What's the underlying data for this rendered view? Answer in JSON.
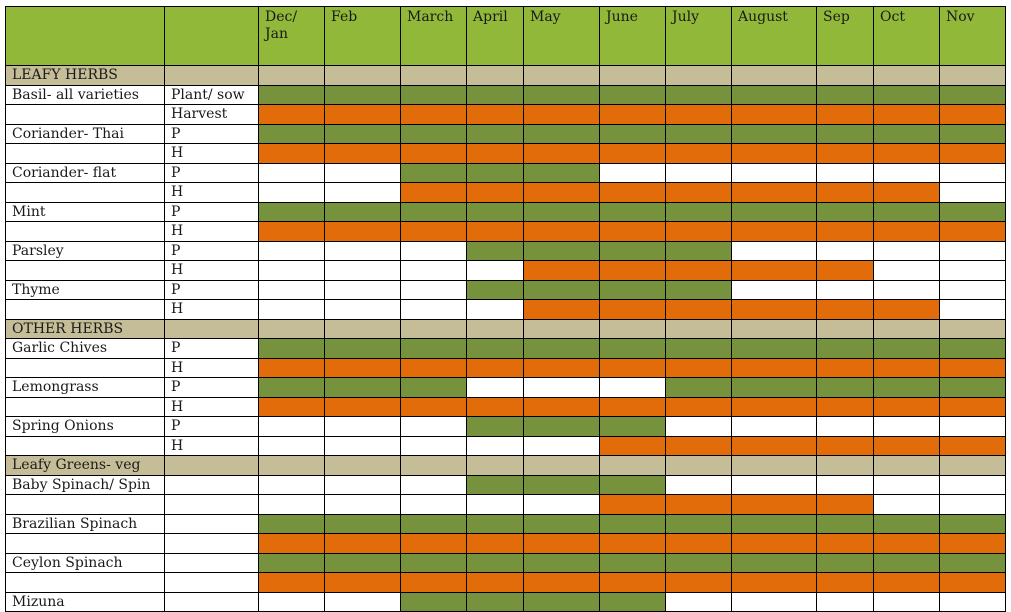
{
  "colors": {
    "header": "#92b83a",
    "section": "#c4bd97",
    "plant": "#76923c",
    "harvest": "#e36c0a",
    "none": "#ffffff"
  },
  "header": {
    "crop": "",
    "type": "",
    "months": [
      "Dec/ Jan",
      "Feb",
      "March",
      "April",
      "May",
      "June",
      "July",
      "August",
      "Sep",
      "Oct",
      "Nov"
    ]
  },
  "rows": [
    {
      "kind": "section",
      "label": "LEAFY HERBS"
    },
    {
      "kind": "data",
      "crop": "Basil- all varieties",
      "type": "Plant/ sow",
      "cells": "PPPPPPPPPPP"
    },
    {
      "kind": "data",
      "crop": "",
      "type": "Harvest",
      "cells": "HHHHHHHHHHH"
    },
    {
      "kind": "data",
      "crop": "Coriander- Thai",
      "type": "P",
      "cells": "PPPPPPPPPPP"
    },
    {
      "kind": "data",
      "crop": "",
      "type": "H",
      "cells": "HHHHHHHHHHH"
    },
    {
      "kind": "data",
      "crop": "Coriander- flat",
      "type": "P",
      "cells": "--PPP------"
    },
    {
      "kind": "data",
      "crop": "",
      "type": "H",
      "cells": "--HHHHHHHH-"
    },
    {
      "kind": "data",
      "crop": "Mint",
      "type": "P",
      "cells": "PPPPPPPPPPP"
    },
    {
      "kind": "data",
      "crop": "",
      "type": "H",
      "cells": "HHHHHHHHHHH"
    },
    {
      "kind": "data",
      "crop": "Parsley",
      "type": "P",
      "cells": "---PPPP----"
    },
    {
      "kind": "data",
      "crop": "",
      "type": "H",
      "cells": "----HHHHH--"
    },
    {
      "kind": "data",
      "crop": "Thyme",
      "type": "P",
      "cells": "---PPPP----"
    },
    {
      "kind": "data",
      "crop": "",
      "type": "H",
      "cells": "----HHHHHH-"
    },
    {
      "kind": "section",
      "label": "OTHER HERBS"
    },
    {
      "kind": "data",
      "crop": "Garlic Chives",
      "type": "P",
      "cells": "PPPPPPPPPPP"
    },
    {
      "kind": "data",
      "crop": "",
      "type": "H",
      "cells": "HHHHHHHHHHH"
    },
    {
      "kind": "data",
      "crop": "Lemongrass",
      "type": "P",
      "cells": "PPP---PPPPP"
    },
    {
      "kind": "data",
      "crop": "",
      "type": "H",
      "cells": "HHHHHHHHHHH"
    },
    {
      "kind": "data",
      "crop": "Spring Onions",
      "type": "P",
      "cells": "---PPP-----"
    },
    {
      "kind": "data",
      "crop": "",
      "type": "H",
      "cells": "-----HHHHHH"
    },
    {
      "kind": "section",
      "label": "Leafy Greens- veg"
    },
    {
      "kind": "data",
      "crop": "Baby Spinach/ Spin",
      "type": "",
      "cells": "---PPP-----"
    },
    {
      "kind": "data",
      "crop": "",
      "type": "",
      "cells": "-----HHHH--"
    },
    {
      "kind": "data",
      "crop": "Brazilian Spinach",
      "type": "",
      "cells": "PPPPPPPPPPP"
    },
    {
      "kind": "data",
      "crop": "",
      "type": "",
      "cells": "HHHHHHHHHHH"
    },
    {
      "kind": "data",
      "crop": "Ceylon Spinach",
      "type": "",
      "cells": "PPPPPPPPPPP"
    },
    {
      "kind": "data",
      "crop": "",
      "type": "",
      "cells": "HHHHHHHHHHH"
    },
    {
      "kind": "data",
      "crop": "Mizuna",
      "type": "",
      "cells": "--PPPP-----"
    }
  ]
}
